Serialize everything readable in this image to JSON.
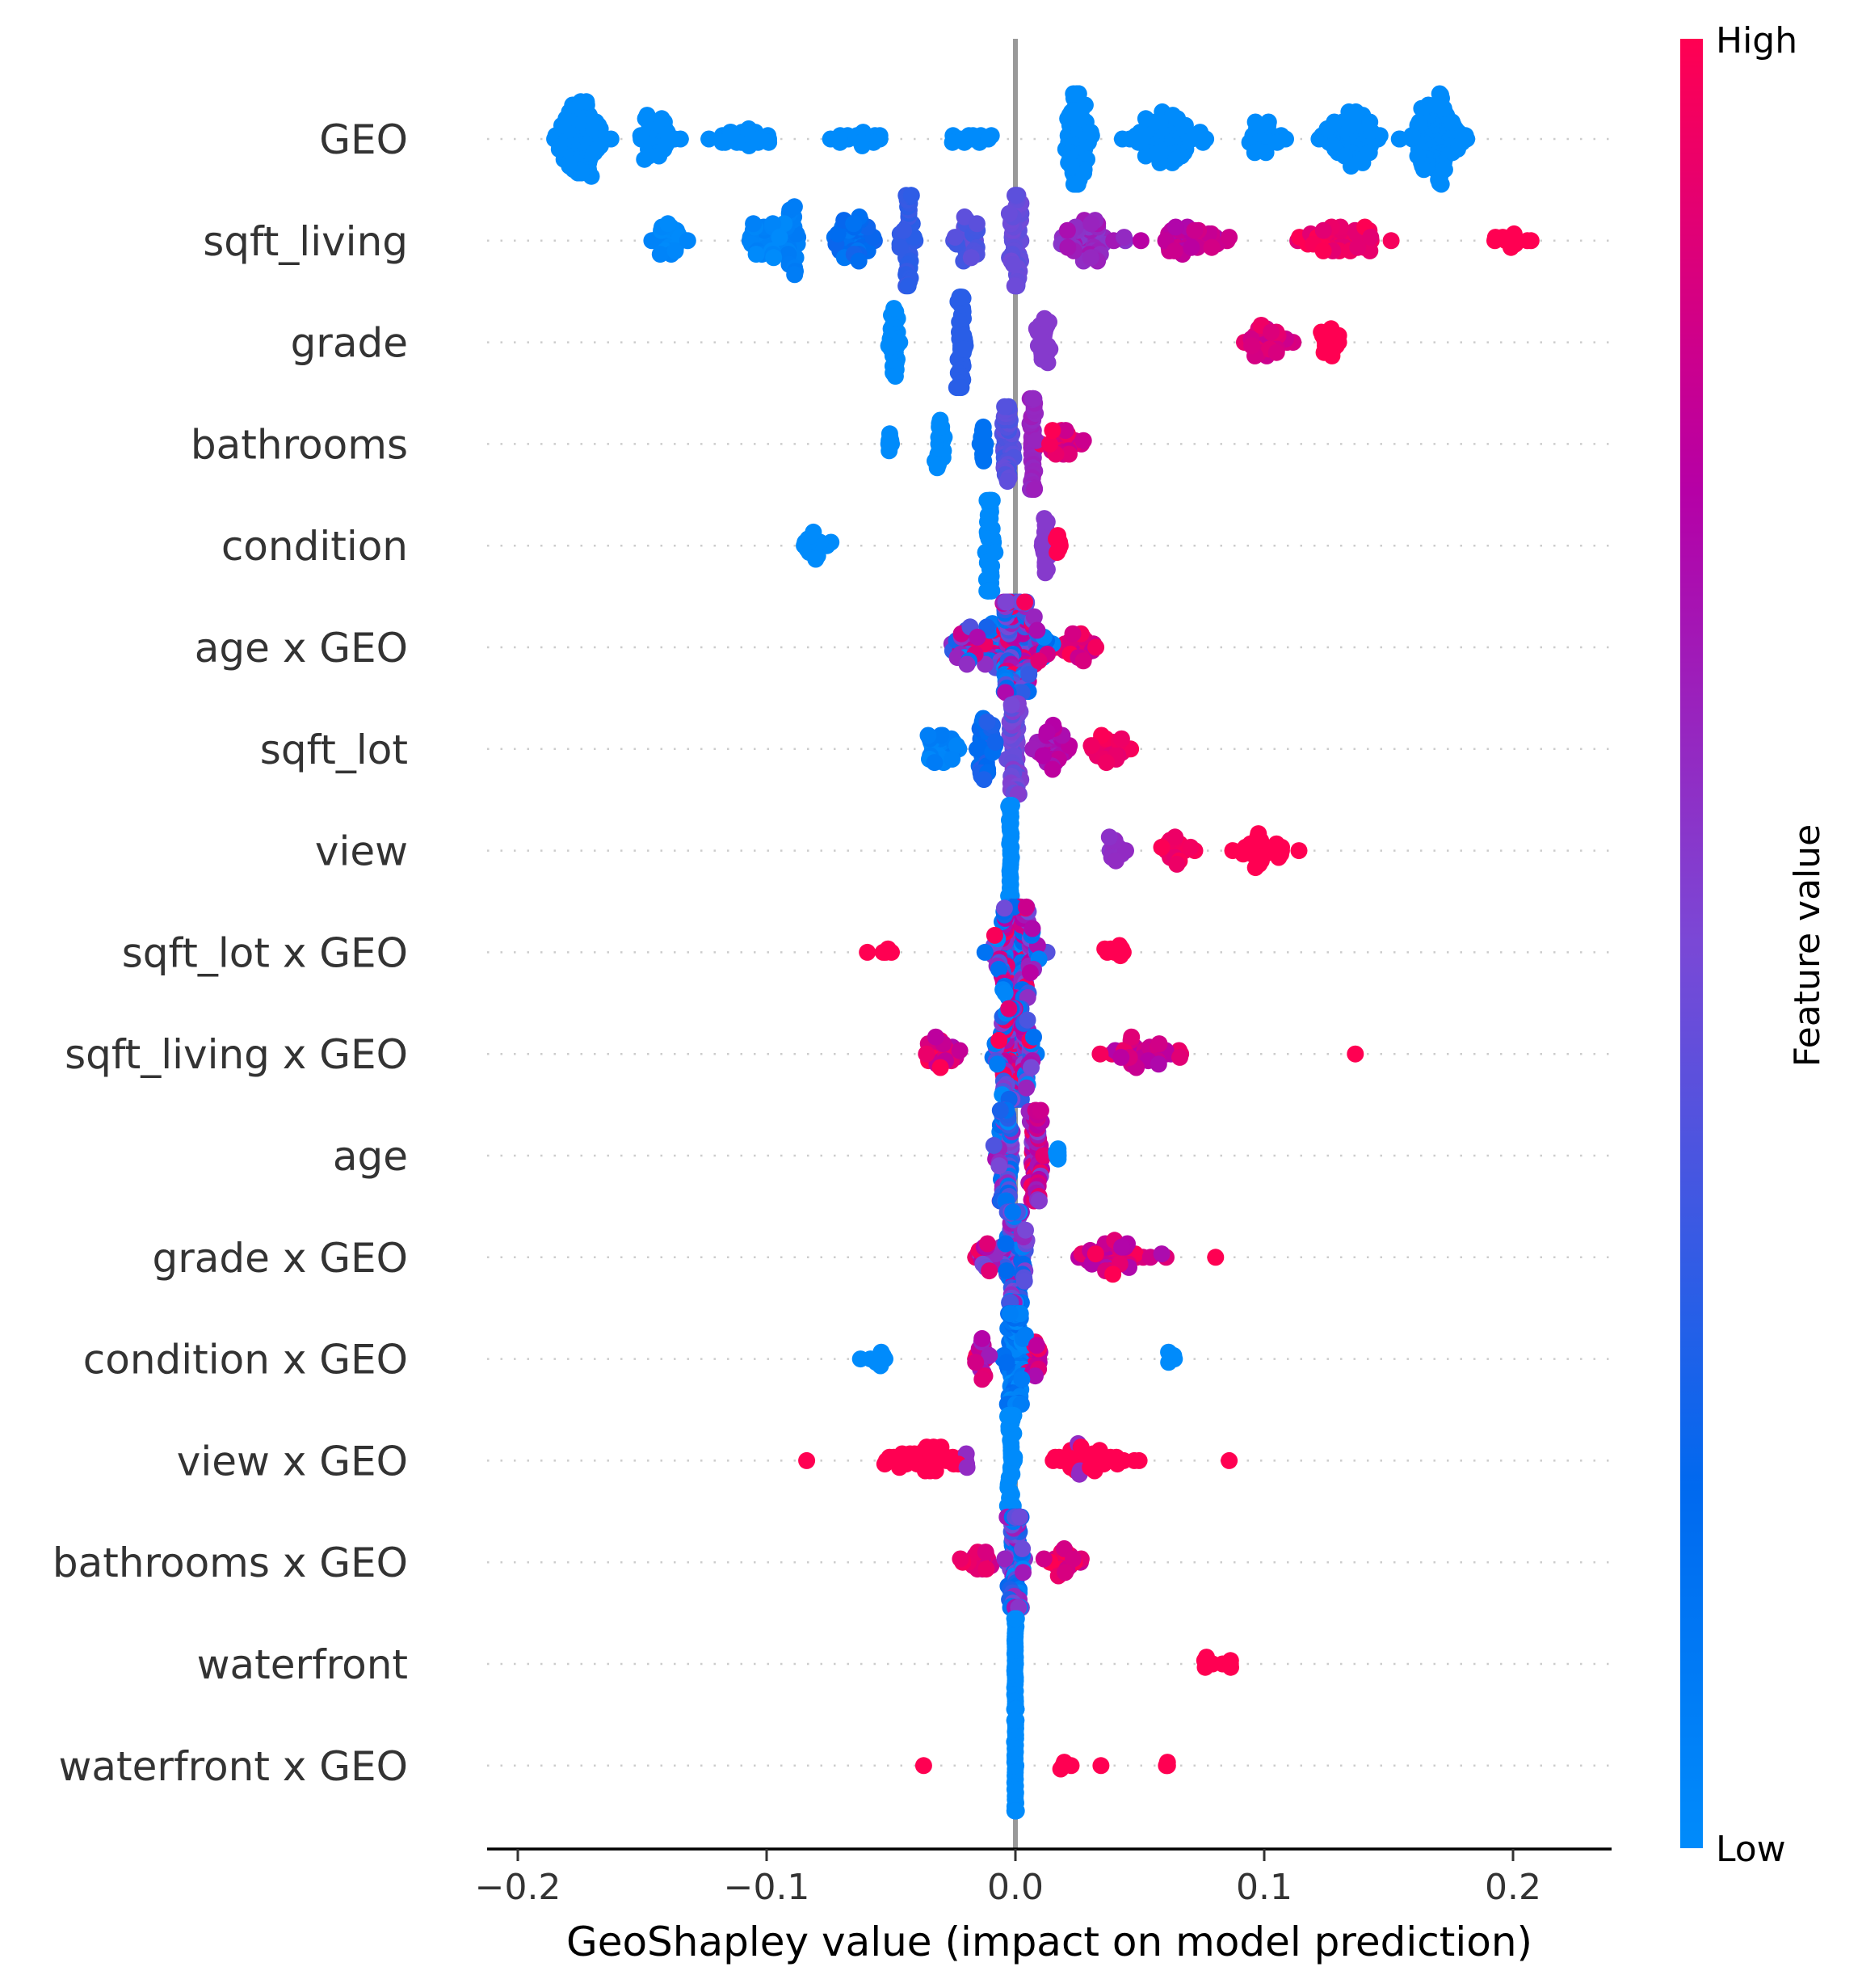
{
  "chart_data": {
    "type": "scatter",
    "subtype": "beeswarm-summary",
    "title": "",
    "xlabel": "GeoShapley value (impact on model prediction)",
    "ylabel": "",
    "xlim": [
      -0.212,
      0.24
    ],
    "xticks": [
      -0.2,
      -0.1,
      0.0,
      0.1,
      0.2
    ],
    "xtick_labels": [
      "−0.2",
      "−0.1",
      "0.0",
      "0.1",
      "0.2"
    ],
    "zero_line": 0.0,
    "grid": "dotted horizontal per feature",
    "colorbar": {
      "title": "Feature value",
      "high_label": "High",
      "low_label": "Low",
      "placement": "right",
      "colors": [
        "#008bfb",
        "#0069ef",
        "#7a48d6",
        "#b600a6",
        "#ff0052"
      ]
    },
    "note": "Clusters describe point groups: [center, half-spread, count, feature_value_low, feature_value_high] in data units; feature_value 0=Low, 1=High",
    "features": [
      {
        "name": "GEO",
        "clusters": [
          [
            -0.175,
            0.018,
            110,
            0.0,
            0.0
          ],
          [
            -0.145,
            0.015,
            45,
            0.0,
            0.0
          ],
          [
            -0.11,
            0.02,
            30,
            0.0,
            0.0
          ],
          [
            -0.06,
            0.025,
            20,
            0.0,
            0.0
          ],
          [
            -0.015,
            0.018,
            14,
            0.0,
            0.0
          ],
          [
            0.025,
            0.01,
            80,
            0.0,
            0.0
          ],
          [
            0.06,
            0.025,
            90,
            0.0,
            0.0
          ],
          [
            0.1,
            0.012,
            30,
            0.0,
            0.0
          ],
          [
            0.135,
            0.02,
            80,
            0.0,
            0.0
          ],
          [
            0.17,
            0.018,
            120,
            0.0,
            0.0
          ]
        ]
      },
      {
        "name": "sqft_living",
        "clusters": [
          [
            -0.14,
            0.013,
            30,
            0.0,
            0.05
          ],
          [
            -0.1,
            0.015,
            40,
            0.0,
            0.1
          ],
          [
            -0.09,
            0.004,
            30,
            0.05,
            0.1
          ],
          [
            -0.065,
            0.013,
            50,
            0.1,
            0.25
          ],
          [
            -0.043,
            0.006,
            40,
            0.3,
            0.35
          ],
          [
            -0.02,
            0.012,
            30,
            0.35,
            0.45
          ],
          [
            0.0,
            0.004,
            50,
            0.42,
            0.48
          ],
          [
            0.03,
            0.02,
            60,
            0.55,
            0.7
          ],
          [
            0.07,
            0.025,
            50,
            0.7,
            0.85
          ],
          [
            0.13,
            0.03,
            60,
            0.9,
            1.0
          ],
          [
            0.2,
            0.015,
            12,
            1.0,
            1.0
          ]
        ]
      },
      {
        "name": "grade",
        "clusters": [
          [
            -0.049,
            0.004,
            25,
            0.0,
            0.0
          ],
          [
            -0.022,
            0.003,
            40,
            0.3,
            0.3
          ],
          [
            0.011,
            0.004,
            25,
            0.55,
            0.55
          ],
          [
            0.1,
            0.015,
            40,
            0.8,
            0.95
          ],
          [
            0.125,
            0.012,
            20,
            1.0,
            1.0
          ]
        ]
      },
      {
        "name": "bathrooms",
        "clusters": [
          [
            -0.05,
            0.003,
            8,
            0.0,
            0.0
          ],
          [
            -0.03,
            0.003,
            25,
            0.0,
            0.0
          ],
          [
            -0.013,
            0.002,
            12,
            0.15,
            0.15
          ],
          [
            -0.003,
            0.004,
            45,
            0.35,
            0.45
          ],
          [
            0.007,
            0.002,
            45,
            0.6,
            0.65
          ],
          [
            0.02,
            0.012,
            30,
            0.8,
            1.0
          ]
        ]
      },
      {
        "name": "condition",
        "clusters": [
          [
            -0.08,
            0.01,
            18,
            0.0,
            0.0
          ],
          [
            -0.01,
            0.003,
            50,
            0.0,
            0.0
          ],
          [
            0.012,
            0.002,
            20,
            0.55,
            0.55
          ],
          [
            0.017,
            0.002,
            10,
            1.0,
            1.0
          ]
        ]
      },
      {
        "name": "age x GEO",
        "clusters": [
          [
            0.0,
            0.02,
            200,
            0.0,
            1.0
          ],
          [
            0.025,
            0.012,
            30,
            0.8,
            1.0
          ],
          [
            -0.02,
            0.01,
            30,
            0.0,
            1.0
          ]
        ]
      },
      {
        "name": "sqft_lot",
        "clusters": [
          [
            -0.03,
            0.01,
            35,
            0.0,
            0.1
          ],
          [
            -0.012,
            0.006,
            40,
            0.15,
            0.3
          ],
          [
            0.0,
            0.004,
            60,
            0.4,
            0.55
          ],
          [
            0.015,
            0.01,
            40,
            0.6,
            0.8
          ],
          [
            0.038,
            0.013,
            30,
            0.9,
            1.0
          ]
        ]
      },
      {
        "name": "view",
        "clusters": [
          [
            -0.002,
            0.001,
            60,
            0.0,
            0.0
          ],
          [
            0.04,
            0.008,
            12,
            0.55,
            0.6
          ],
          [
            0.065,
            0.012,
            20,
            0.85,
            1.0
          ],
          [
            0.1,
            0.017,
            30,
            1.0,
            1.0
          ]
        ]
      },
      {
        "name": "sqft_lot x GEO",
        "clusters": [
          [
            0.0,
            0.015,
            180,
            0.0,
            1.0
          ],
          [
            -0.05,
            0.01,
            4,
            1.0,
            1.0
          ],
          [
            0.04,
            0.012,
            8,
            1.0,
            1.0
          ],
          [
            -0.06,
            0.001,
            1,
            1.0,
            1.0
          ]
        ]
      },
      {
        "name": "sqft_living x GEO",
        "clusters": [
          [
            0.0,
            0.012,
            160,
            0.0,
            1.0
          ],
          [
            -0.03,
            0.012,
            30,
            0.7,
            1.0
          ],
          [
            0.05,
            0.03,
            40,
            0.7,
            1.0
          ],
          [
            0.137,
            0.001,
            1,
            1.0,
            1.0
          ]
        ]
      },
      {
        "name": "age",
        "clusters": [
          [
            -0.004,
            0.005,
            90,
            0.0,
            0.7
          ],
          [
            0.008,
            0.005,
            60,
            0.5,
            1.0
          ],
          [
            0.017,
            0.002,
            6,
            0.0,
            0.0
          ]
        ]
      },
      {
        "name": "grade x GEO",
        "clusters": [
          [
            0.0,
            0.008,
            140,
            0.0,
            0.7
          ],
          [
            -0.012,
            0.008,
            20,
            0.4,
            1.0
          ],
          [
            0.04,
            0.025,
            50,
            0.7,
            1.0
          ],
          [
            0.08,
            0.001,
            1,
            1.0,
            1.0
          ]
        ]
      },
      {
        "name": "condition x GEO",
        "clusters": [
          [
            0.0,
            0.007,
            120,
            0.0,
            0.2
          ],
          [
            -0.013,
            0.006,
            18,
            0.5,
            1.0
          ],
          [
            -0.055,
            0.01,
            8,
            0.0,
            0.0
          ],
          [
            0.062,
            0.02,
            5,
            0.0,
            0.0
          ],
          [
            0.008,
            0.006,
            20,
            0.7,
            1.0
          ]
        ]
      },
      {
        "name": "view x GEO",
        "clusters": [
          [
            -0.002,
            0.002,
            90,
            0.0,
            0.0
          ],
          [
            -0.035,
            0.03,
            50,
            1.0,
            1.0
          ],
          [
            0.03,
            0.025,
            45,
            1.0,
            1.0
          ],
          [
            0.025,
            0.004,
            6,
            0.6,
            0.6
          ],
          [
            -0.02,
            0.003,
            5,
            0.6,
            0.6
          ],
          [
            -0.084,
            0.001,
            1,
            1.0,
            1.0
          ],
          [
            0.086,
            0.001,
            1,
            1.0,
            1.0
          ]
        ]
      },
      {
        "name": "bathrooms x GEO",
        "clusters": [
          [
            0.0,
            0.005,
            140,
            0.0,
            0.7
          ],
          [
            -0.015,
            0.01,
            20,
            0.8,
            1.0
          ],
          [
            0.02,
            0.01,
            25,
            0.8,
            1.0
          ]
        ]
      },
      {
        "name": "waterfront",
        "clusters": [
          [
            0.0,
            0.0005,
            90,
            0.0,
            0.0
          ],
          [
            0.085,
            0.014,
            9,
            1.0,
            1.0
          ]
        ]
      },
      {
        "name": "waterfront x GEO",
        "clusters": [
          [
            0.0,
            0.0005,
            80,
            0.0,
            0.0
          ],
          [
            -0.037,
            0.001,
            1,
            1.0,
            1.0
          ],
          [
            0.02,
            0.004,
            4,
            1.0,
            1.0
          ],
          [
            0.034,
            0.001,
            1,
            1.0,
            1.0
          ],
          [
            0.062,
            0.002,
            3,
            1.0,
            1.0
          ]
        ]
      }
    ]
  }
}
